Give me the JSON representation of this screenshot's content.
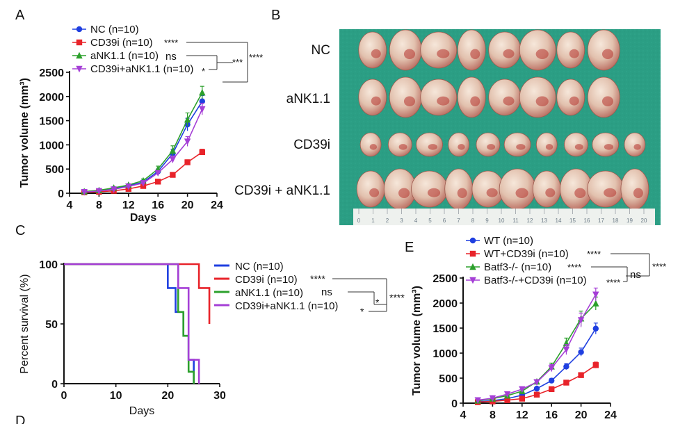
{
  "panels": {
    "a": "A",
    "b": "B",
    "c": "C",
    "d_partial": "D",
    "e": "E"
  },
  "photo": {
    "background_color": "#2b9e84",
    "row_labels": [
      "NC",
      "aNK1.1",
      "CD39i",
      "CD39i + aNK1.1"
    ],
    "tumor_counts": [
      8,
      8,
      10,
      10
    ],
    "ruler_ticks": [
      "0",
      "1",
      "2",
      "3",
      "4",
      "5",
      "6",
      "7",
      "8",
      "9",
      "10",
      "11",
      "12",
      "13",
      "14",
      "15",
      "16",
      "17",
      "18",
      "19",
      "20"
    ]
  },
  "chart_data": [
    {
      "id": "A",
      "type": "line",
      "xlabel": "Days",
      "ylabel": "Tumor volume (mm³)",
      "xlim": [
        4,
        24
      ],
      "ylim": [
        0,
        2500
      ],
      "xticks": [
        4,
        8,
        12,
        16,
        20,
        24
      ],
      "yticks": [
        0,
        500,
        1000,
        1500,
        2000,
        2500
      ],
      "x": [
        6,
        8,
        10,
        12,
        14,
        16,
        18,
        20,
        22
      ],
      "series": [
        {
          "name": "NC (n=10)",
          "color": "#1f3fe0",
          "marker": "circle",
          "values": [
            30,
            50,
            90,
            150,
            230,
            450,
            820,
            1420,
            1900
          ],
          "err": [
            10,
            15,
            20,
            25,
            30,
            50,
            90,
            130,
            120
          ]
        },
        {
          "name": "CD39i (n=10)",
          "color": "#e8232a",
          "marker": "square",
          "values": [
            20,
            30,
            50,
            90,
            150,
            240,
            380,
            640,
            850
          ],
          "err": [
            5,
            8,
            12,
            15,
            20,
            30,
            40,
            50,
            60
          ]
        },
        {
          "name": "aNK1.1 (n=10)",
          "color": "#2ca02c",
          "marker": "triangle-up",
          "values": [
            35,
            60,
            110,
            170,
            260,
            500,
            880,
            1520,
            2080
          ],
          "err": [
            10,
            15,
            20,
            25,
            35,
            60,
            100,
            140,
            130
          ]
        },
        {
          "name": "CD39i+aNK1.1 (n=10)",
          "color": "#a53fd6",
          "marker": "triangle-down",
          "values": [
            25,
            45,
            80,
            140,
            210,
            420,
            700,
            1070,
            1740
          ],
          "err": [
            8,
            12,
            18,
            22,
            30,
            40,
            70,
            100,
            120
          ]
        }
      ],
      "significance": [
        "****",
        "ns",
        "*",
        "***",
        "****"
      ]
    },
    {
      "id": "C",
      "type": "line",
      "xlabel": "Days",
      "ylabel": "Percent survival (%)",
      "xlim": [
        0,
        30
      ],
      "ylim": [
        0,
        100
      ],
      "xticks": [
        0,
        10,
        20,
        30
      ],
      "yticks": [
        0,
        50,
        100
      ],
      "series": [
        {
          "name": "NC (n=10)",
          "color": "#1f3fe0",
          "steps": [
            [
              0,
              100
            ],
            [
              20,
              100
            ],
            [
              20,
              80
            ],
            [
              21.5,
              80
            ],
            [
              21.5,
              60
            ],
            [
              23,
              60
            ],
            [
              23,
              40
            ],
            [
              24,
              40
            ],
            [
              24,
              20
            ],
            [
              25,
              20
            ],
            [
              25,
              0
            ]
          ]
        },
        {
          "name": "CD39i (n=10)",
          "color": "#e8232a",
          "steps": [
            [
              0,
              100
            ],
            [
              26,
              100
            ],
            [
              26,
              80
            ],
            [
              28,
              80
            ],
            [
              28,
              50
            ]
          ]
        },
        {
          "name": "aNK1.1 (n=10)",
          "color": "#2ca02c",
          "steps": [
            [
              0,
              100
            ],
            [
              22,
              100
            ],
            [
              22,
              60
            ],
            [
              23,
              60
            ],
            [
              23,
              40
            ],
            [
              24,
              40
            ],
            [
              24,
              10
            ],
            [
              25,
              10
            ],
            [
              25,
              0
            ]
          ]
        },
        {
          "name": "CD39i+aNK1.1 (n=10)",
          "color": "#a53fd6",
          "steps": [
            [
              0,
              100
            ],
            [
              22,
              100
            ],
            [
              22,
              80
            ],
            [
              24,
              80
            ],
            [
              24,
              20
            ],
            [
              26,
              20
            ],
            [
              26,
              0
            ]
          ]
        }
      ],
      "significance": [
        "****",
        "ns",
        "*",
        "*",
        "****"
      ]
    },
    {
      "id": "E",
      "type": "line",
      "xlabel": "",
      "ylabel": "Tumor volume (mm³)",
      "xlim": [
        4,
        24
      ],
      "ylim": [
        0,
        2500
      ],
      "xticks": [
        4,
        8,
        12,
        16,
        20,
        24
      ],
      "yticks": [
        0,
        500,
        1000,
        1500,
        2000,
        2500
      ],
      "x": [
        6,
        8,
        10,
        12,
        14,
        16,
        18,
        20,
        22
      ],
      "series": [
        {
          "name": "WT (n=10)",
          "color": "#1f3fe0",
          "marker": "circle",
          "values": [
            30,
            50,
            90,
            160,
            290,
            450,
            730,
            1020,
            1490
          ],
          "err": [
            10,
            15,
            20,
            25,
            30,
            40,
            60,
            80,
            110
          ]
        },
        {
          "name": "WT+CD39i (n=10)",
          "color": "#e8232a",
          "marker": "square",
          "values": [
            20,
            35,
            60,
            90,
            170,
            280,
            410,
            560,
            760
          ],
          "err": [
            5,
            8,
            10,
            15,
            20,
            30,
            40,
            50,
            60
          ]
        },
        {
          "name": "Batf3-/- (n=10)",
          "color": "#2ca02c",
          "marker": "triangle-up",
          "values": [
            50,
            90,
            150,
            240,
            430,
            730,
            1200,
            1690,
            1990
          ],
          "err": [
            15,
            20,
            25,
            30,
            40,
            70,
            100,
            150,
            130
          ]
        },
        {
          "name": "Batf3-/-+CD39i (n=10)",
          "color": "#a53fd6",
          "marker": "triangle-down",
          "values": [
            60,
            100,
            180,
            280,
            420,
            700,
            1070,
            1660,
            2170
          ],
          "err": [
            15,
            20,
            25,
            30,
            40,
            70,
            100,
            140,
            130
          ]
        }
      ],
      "significance": [
        "****",
        "****",
        "****",
        "ns",
        "****"
      ]
    }
  ]
}
